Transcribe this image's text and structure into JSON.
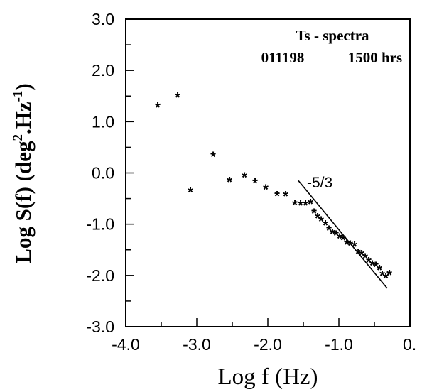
{
  "chart_data": {
    "type": "scatter",
    "xlabel": "Log f (Hz)",
    "ylabel_parts": [
      "Log S(f) (deg",
      "2",
      ".Hz",
      "-1",
      ")"
    ],
    "annotation_title": "Ts - spectra",
    "annotation_date": "011198",
    "annotation_time": "1500 hrs",
    "xlim": [
      -4.0,
      0.0
    ],
    "ylim": [
      -3.0,
      3.0
    ],
    "xticks": [
      -4.0,
      -3.0,
      -2.0,
      -1.0,
      0.0
    ],
    "xtick_labels": [
      "-4.0",
      "-3.0",
      "-2.0",
      "-1.0",
      "0."
    ],
    "yticks": [
      3.0,
      2.0,
      1.0,
      0.0,
      -1.0,
      -2.0,
      -3.0
    ],
    "ytick_labels": [
      "3.0",
      "2.0",
      "1.0",
      "0.0",
      "-1.0",
      "-2.0",
      "-3.0"
    ],
    "grid": false,
    "marker": "*",
    "points": [
      {
        "x": -3.55,
        "y": 1.32
      },
      {
        "x": -3.27,
        "y": 1.52
      },
      {
        "x": -3.09,
        "y": -0.33
      },
      {
        "x": -2.77,
        "y": 0.36
      },
      {
        "x": -2.54,
        "y": -0.13
      },
      {
        "x": -2.33,
        "y": -0.04
      },
      {
        "x": -2.18,
        "y": -0.16
      },
      {
        "x": -2.03,
        "y": -0.28
      },
      {
        "x": -1.87,
        "y": -0.41
      },
      {
        "x": -1.75,
        "y": -0.41
      },
      {
        "x": -1.62,
        "y": -0.58
      },
      {
        "x": -1.54,
        "y": -0.59
      },
      {
        "x": -1.47,
        "y": -0.59
      },
      {
        "x": -1.4,
        "y": -0.56
      },
      {
        "x": -1.35,
        "y": -0.75
      },
      {
        "x": -1.3,
        "y": -0.84
      },
      {
        "x": -1.25,
        "y": -0.9
      },
      {
        "x": -1.19,
        "y": -0.98
      },
      {
        "x": -1.14,
        "y": -1.08
      },
      {
        "x": -1.09,
        "y": -1.14
      },
      {
        "x": -1.04,
        "y": -1.18
      },
      {
        "x": -0.99,
        "y": -1.23
      },
      {
        "x": -0.94,
        "y": -1.27
      },
      {
        "x": -0.89,
        "y": -1.35
      },
      {
        "x": -0.84,
        "y": -1.37
      },
      {
        "x": -0.78,
        "y": -1.39
      },
      {
        "x": -0.73,
        "y": -1.53
      },
      {
        "x": -0.68,
        "y": -1.56
      },
      {
        "x": -0.63,
        "y": -1.62
      },
      {
        "x": -0.58,
        "y": -1.7
      },
      {
        "x": -0.53,
        "y": -1.76
      },
      {
        "x": -0.48,
        "y": -1.79
      },
      {
        "x": -0.43,
        "y": -1.85
      },
      {
        "x": -0.39,
        "y": -1.96
      },
      {
        "x": -0.34,
        "y": -2.01
      },
      {
        "x": -0.29,
        "y": -1.95
      }
    ],
    "reference_line": {
      "label": "-5/3",
      "x": [
        -1.57,
        -0.32
      ],
      "y": [
        -0.15,
        -2.25
      ]
    }
  }
}
